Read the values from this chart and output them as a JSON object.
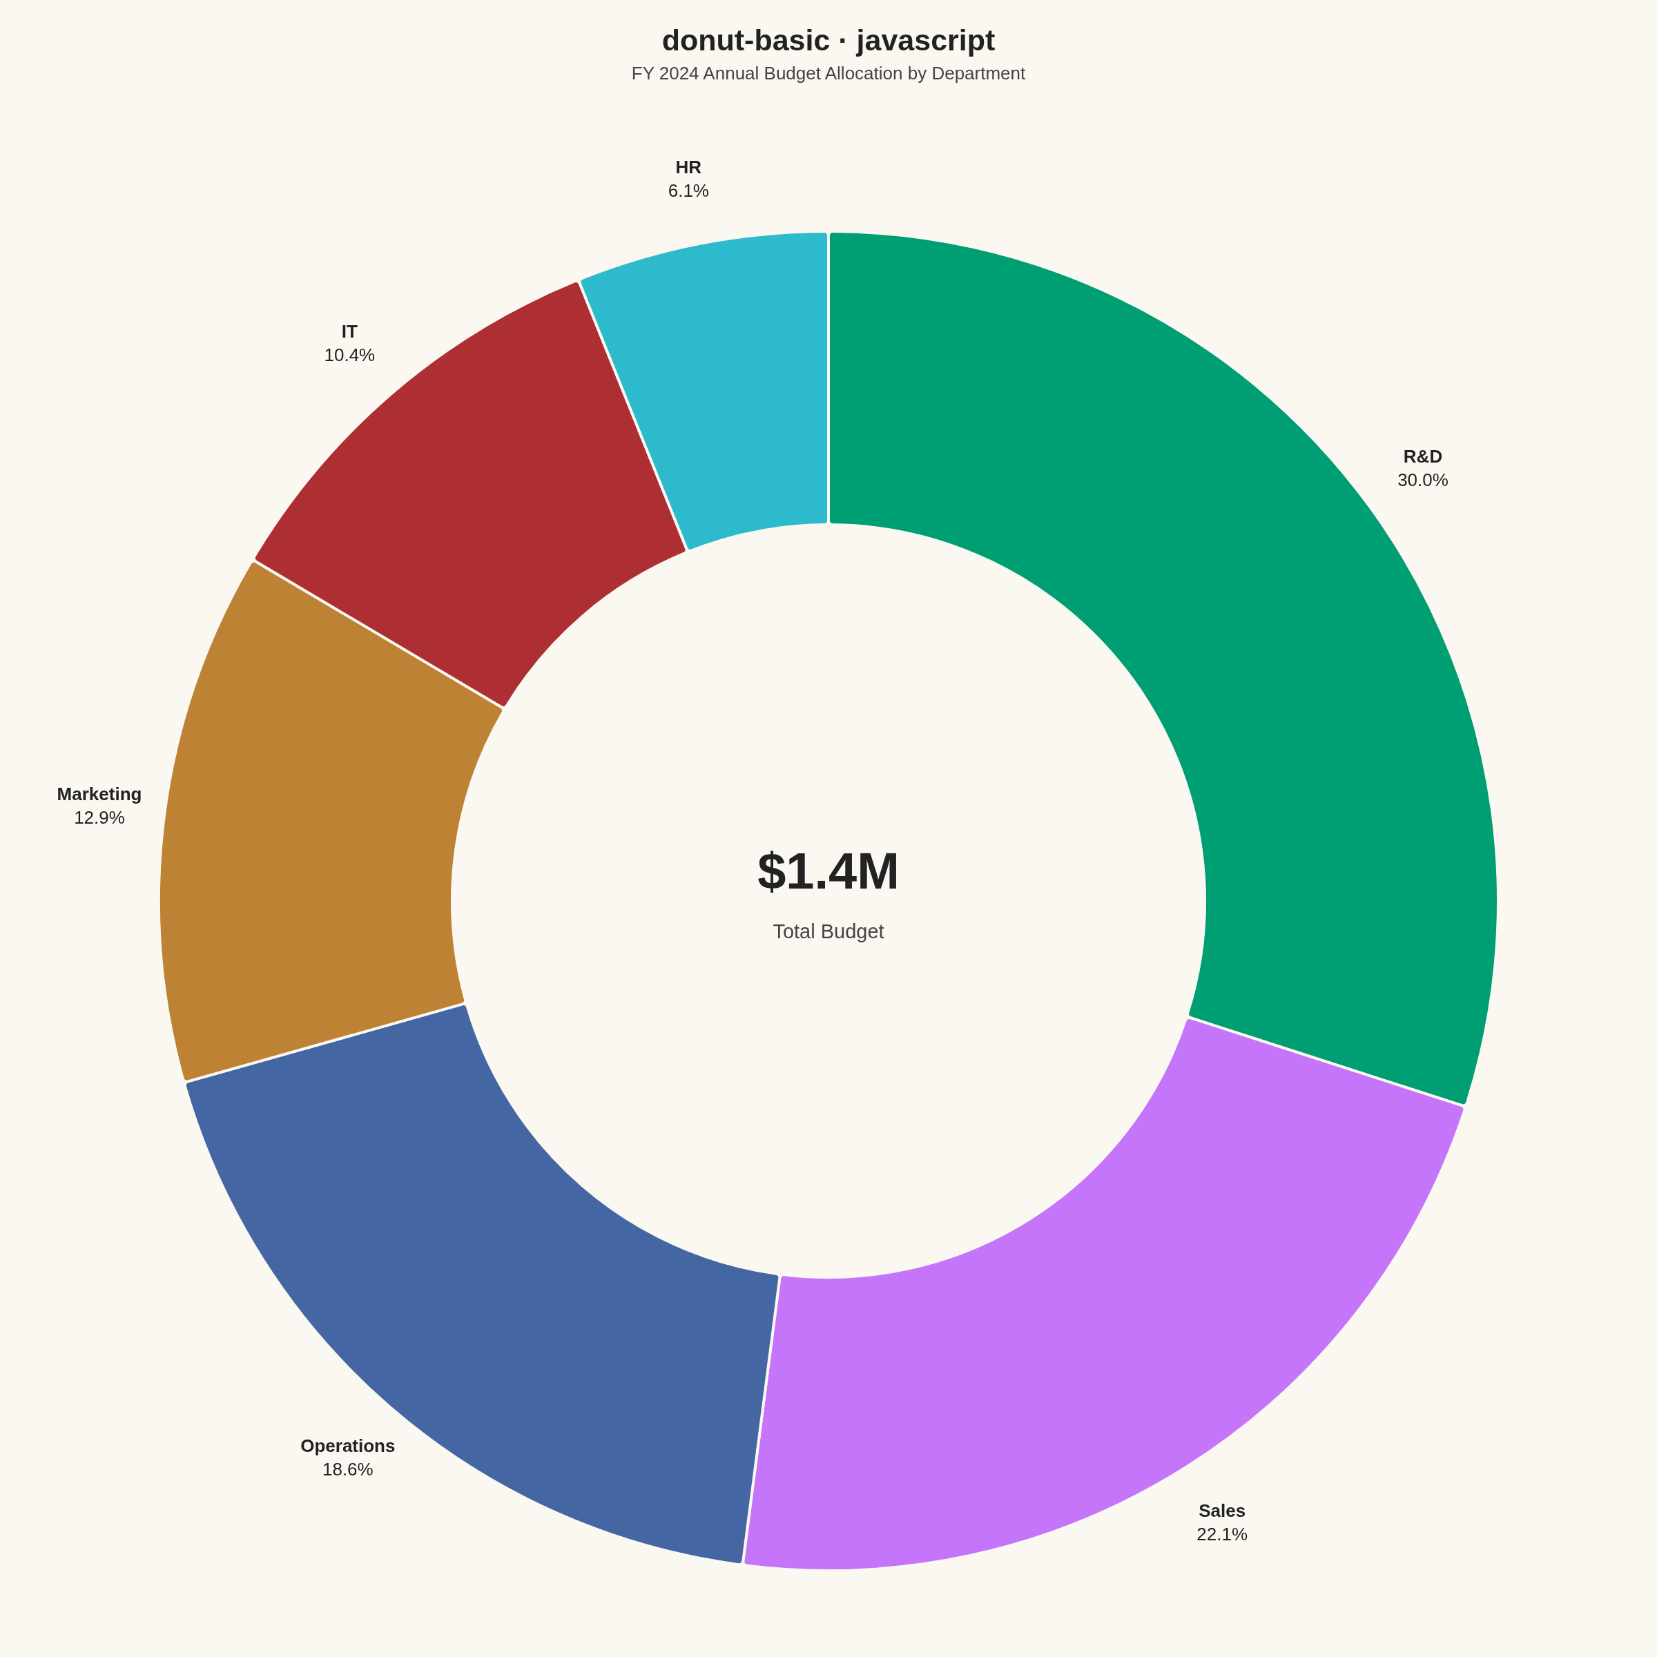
{
  "chart_data": {
    "type": "donut",
    "title": "donut-basic · javascript",
    "subtitle": "FY 2024 Annual Budget Allocation by Department",
    "categories": [
      "R&D",
      "Sales",
      "Operations",
      "Marketing",
      "IT",
      "HR"
    ],
    "values": [
      30.0,
      22.1,
      18.6,
      12.9,
      10.4,
      6.1
    ],
    "value_labels": [
      "30.0%",
      "22.1%",
      "18.6%",
      "12.9%",
      "10.4%",
      "6.1%"
    ],
    "colors": [
      "#009e73",
      "#c475fa",
      "#4467a3",
      "#bd8233",
      "#ae2f33",
      "#2cbacc"
    ],
    "annotations": [
      "$1.4M",
      "Total Budget"
    ]
  }
}
